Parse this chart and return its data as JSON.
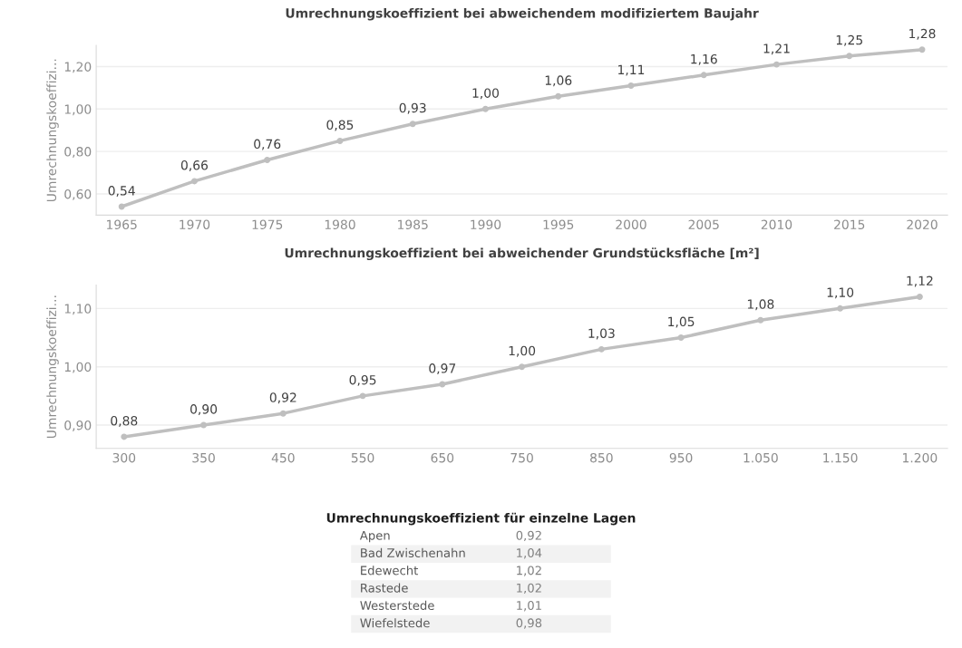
{
  "chart_data": [
    {
      "type": "line",
      "title": "Umrechnungskoeffizient bei abweichendem modifiziertem Baujahr",
      "ylabel": "Umrechnungskoeffizi...",
      "categories": [
        "1965",
        "1970",
        "1975",
        "1980",
        "1985",
        "1990",
        "1995",
        "2000",
        "2005",
        "2010",
        "2015",
        "2020"
      ],
      "series": [
        {
          "color": "#bfbfbf",
          "values": [
            0.54,
            0.66,
            0.76,
            0.85,
            0.93,
            1.0,
            1.06,
            1.11,
            1.16,
            1.21,
            1.25,
            1.28
          ],
          "value_labels": [
            "0,54",
            "0,66",
            "0,76",
            "0,85",
            "0,93",
            "1,00",
            "1,06",
            "1,11",
            "1,16",
            "1,21",
            "1,25",
            "1,28"
          ]
        }
      ],
      "ylim": [
        0.5,
        1.3
      ],
      "yticks": [
        {
          "value": 0.6,
          "label": "0,60"
        },
        {
          "value": 0.8,
          "label": "0,80"
        },
        {
          "value": 1.0,
          "label": "1,00"
        },
        {
          "value": 1.2,
          "label": "1,20"
        }
      ],
      "grid": "y",
      "marker": "circle",
      "line_style": "solid",
      "legend": false
    },
    {
      "type": "line",
      "title": "Umrechnungskoeffizient bei abweichender Grundstücksfläche [m²]",
      "ylabel": "Umrechnungskoeffizi...",
      "categories": [
        "300",
        "350",
        "450",
        "550",
        "650",
        "750",
        "850",
        "950",
        "1.050",
        "1.150",
        "1.200"
      ],
      "series": [
        {
          "color": "#bfbfbf",
          "values": [
            0.88,
            0.9,
            0.92,
            0.95,
            0.97,
            1.0,
            1.03,
            1.05,
            1.08,
            1.1,
            1.12
          ],
          "value_labels": [
            "0,88",
            "0,90",
            "0,92",
            "0,95",
            "0,97",
            "1,00",
            "1,03",
            "1,05",
            "1,08",
            "1,10",
            "1,12"
          ]
        }
      ],
      "ylim": [
        0.86,
        1.14
      ],
      "yticks": [
        {
          "value": 0.9,
          "label": "0,90"
        },
        {
          "value": 1.0,
          "label": "1,00"
        },
        {
          "value": 1.1,
          "label": "1,10"
        }
      ],
      "grid": "y",
      "marker": "circle",
      "line_style": "solid",
      "legend": false
    },
    {
      "type": "other",
      "title": "Umrechnungskoeffizient für einzelne Lagen",
      "categories": [
        "Apen",
        "Bad Zwischenahn",
        "Edewecht",
        "Rastede",
        "Westerstede",
        "Wiefelstede"
      ],
      "value_labels": [
        "0,92",
        "1,04",
        "1,02",
        "1,02",
        "1,01",
        "0,98"
      ]
    }
  ]
}
